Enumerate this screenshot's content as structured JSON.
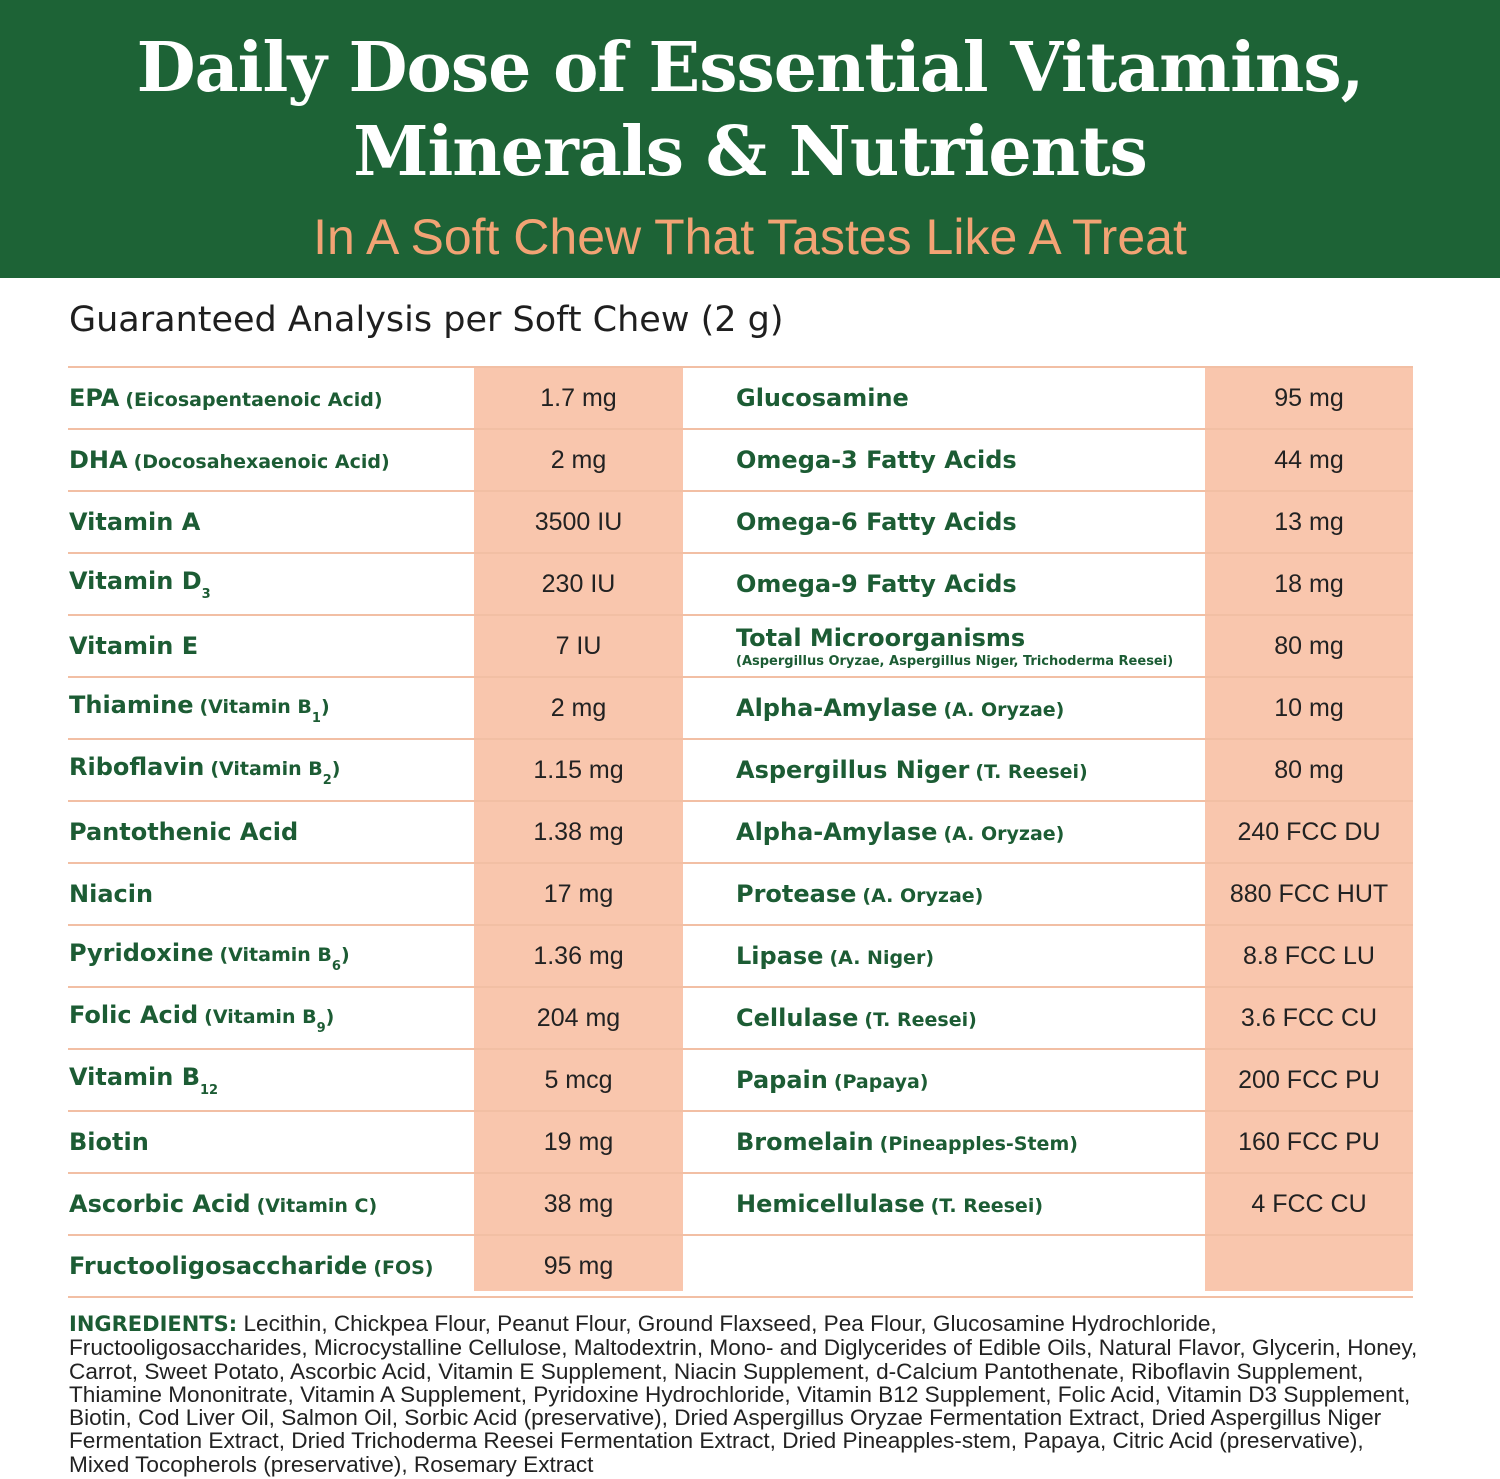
{
  "header": {
    "title_line1": "Daily Dose of Essential Vitamins,",
    "title_line2": "Minerals & Nutrients",
    "subtitle": "In A Soft Chew That Tastes Like A Treat"
  },
  "table": {
    "heading": "Guaranteed Analysis per Soft Chew (2 g)",
    "left": [
      {
        "label": [
          {
            "t": "EPA",
            "s": "main"
          },
          {
            "t": "(Eicosapentaenoic Acid)",
            "s": "note"
          }
        ],
        "amount": "1.7 mg"
      },
      {
        "label": [
          {
            "t": "DHA",
            "s": "main"
          },
          {
            "t": "(Docosahexaenoic Acid)",
            "s": "note"
          }
        ],
        "amount": "2 mg"
      },
      {
        "label": [
          {
            "t": "Vitamin A",
            "s": "main"
          }
        ],
        "amount": "3500 IU"
      },
      {
        "label": [
          {
            "t": "Vitamin D",
            "s": "main"
          },
          {
            "t": "3",
            "s": "sub"
          }
        ],
        "amount": "230 IU"
      },
      {
        "label": [
          {
            "t": "Vitamin E",
            "s": "main"
          }
        ],
        "amount": "7 IU"
      },
      {
        "label": [
          {
            "t": "Thiamine",
            "s": "main"
          },
          {
            "t": "(Vitamin B",
            "s": "note"
          },
          {
            "t": "1",
            "s": "sub"
          },
          {
            "t": ")",
            "s": "close"
          }
        ],
        "amount": "2 mg"
      },
      {
        "label": [
          {
            "t": "Riboflavin",
            "s": "main"
          },
          {
            "t": "(Vitamin B",
            "s": "note"
          },
          {
            "t": "2",
            "s": "sub"
          },
          {
            "t": ")",
            "s": "close"
          }
        ],
        "amount": "1.15 mg"
      },
      {
        "label": [
          {
            "t": "Pantothenic Acid",
            "s": "main"
          }
        ],
        "amount": "1.38 mg"
      },
      {
        "label": [
          {
            "t": "Niacin",
            "s": "main"
          }
        ],
        "amount": "17 mg"
      },
      {
        "label": [
          {
            "t": "Pyridoxine",
            "s": "main"
          },
          {
            "t": "(Vitamin B",
            "s": "note"
          },
          {
            "t": "6",
            "s": "sub"
          },
          {
            "t": ")",
            "s": "close"
          }
        ],
        "amount": "1.36 mg"
      },
      {
        "label": [
          {
            "t": "Folic Acid",
            "s": "main"
          },
          {
            "t": "(Vitamin B",
            "s": "note"
          },
          {
            "t": "9",
            "s": "sub"
          },
          {
            "t": ")",
            "s": "close"
          }
        ],
        "amount": "204 mg"
      },
      {
        "label": [
          {
            "t": "Vitamin B",
            "s": "main"
          },
          {
            "t": "12",
            "s": "sub"
          }
        ],
        "amount": "5 mcg"
      },
      {
        "label": [
          {
            "t": "Biotin",
            "s": "main"
          }
        ],
        "amount": "19 mg"
      },
      {
        "label": [
          {
            "t": "Ascorbic Acid",
            "s": "main"
          },
          {
            "t": "(Vitamin C)",
            "s": "note"
          }
        ],
        "amount": "38 mg"
      },
      {
        "label": [
          {
            "t": "Fructooligosaccharide",
            "s": "main"
          },
          {
            "t": "(FOS)",
            "s": "note"
          }
        ],
        "amount": "95 mg"
      }
    ],
    "right": [
      {
        "label": [
          {
            "t": "Glucosamine",
            "s": "main"
          }
        ],
        "amount": "95 mg"
      },
      {
        "label": [
          {
            "t": "Omega-3 Fatty Acids",
            "s": "main"
          }
        ],
        "amount": "44 mg"
      },
      {
        "label": [
          {
            "t": "Omega-6 Fatty Acids",
            "s": "main"
          }
        ],
        "amount": "13 mg"
      },
      {
        "label": [
          {
            "t": "Omega-9 Fatty Acids",
            "s": "main"
          }
        ],
        "amount": "18 mg"
      },
      {
        "label": [
          {
            "t": "Total Microorganisms",
            "s": "main"
          },
          {
            "t": "(Aspergillus Oryzae, Aspergillus Niger, Trichoderma Reesei)",
            "s": "line2"
          }
        ],
        "amount": "80 mg"
      },
      {
        "label": [
          {
            "t": "Alpha-Amylase",
            "s": "main"
          },
          {
            "t": "(A. Oryzae)",
            "s": "note"
          }
        ],
        "amount": "10 mg"
      },
      {
        "label": [
          {
            "t": "Aspergillus Niger",
            "s": "main"
          },
          {
            "t": "(T. Reesei)",
            "s": "note"
          }
        ],
        "amount": "80 mg"
      },
      {
        "label": [
          {
            "t": "Alpha-Amylase",
            "s": "main"
          },
          {
            "t": "(A. Oryzae)",
            "s": "note"
          }
        ],
        "amount": "240 FCC DU"
      },
      {
        "label": [
          {
            "t": "Protease",
            "s": "main"
          },
          {
            "t": "(A. Oryzae)",
            "s": "note"
          }
        ],
        "amount": "880 FCC HUT"
      },
      {
        "label": [
          {
            "t": "Lipase",
            "s": "main"
          },
          {
            "t": "(A. Niger)",
            "s": "note"
          }
        ],
        "amount": "8.8 FCC LU"
      },
      {
        "label": [
          {
            "t": "Cellulase",
            "s": "main"
          },
          {
            "t": "(T. Reesei)",
            "s": "note"
          }
        ],
        "amount": "3.6 FCC CU"
      },
      {
        "label": [
          {
            "t": "Papain",
            "s": "main"
          },
          {
            "t": "(Papaya)",
            "s": "note"
          }
        ],
        "amount": "200 FCC PU"
      },
      {
        "label": [
          {
            "t": "Bromelain",
            "s": "main"
          },
          {
            "t": "(Pineapples-Stem)",
            "s": "note"
          }
        ],
        "amount": "160 FCC PU"
      },
      {
        "label": [
          {
            "t": "Hemicellulase",
            "s": "main"
          },
          {
            "t": "(T. Reesei)",
            "s": "note"
          }
        ],
        "amount": "4 FCC CU"
      }
    ]
  },
  "ingredients": {
    "label": "INGREDIENTS:",
    "text": "Lecithin, Chickpea Flour, Peanut Flour, Ground Flaxseed, Pea Flour, Glucosamine Hydrochloride, Fructooligosaccharides, Microcystalline Cellulose, Maltodextrin, Mono- and Diglycerides of Edible Oils, Natural Flavor, Glycerin, Honey, Carrot, Sweet Potato, Ascorbic Acid, Vitamin E Supplement, Niacin Supplement, d-Calcium Pantothenate, Riboflavin Supplement, Thiamine Mononitrate, Vitamin A Supplement, Pyridoxine Hydrochloride, Vitamin B12 Supplement, Folic Acid, Vitamin D3 Supplement, Biotin, Cod Liver Oil, Salmon Oil, Sorbic Acid (preservative), Dried Aspergillus Oryzae Fermentation Extract, Dried Aspergillus Niger Fermentation Extract, Dried Trichoderma Reesei Fermentation Extract, Dried Pineapples-stem, Papaya, Citric Acid (preservative), Mixed Tocopherols (preservative), Rosemary Extract"
  }
}
